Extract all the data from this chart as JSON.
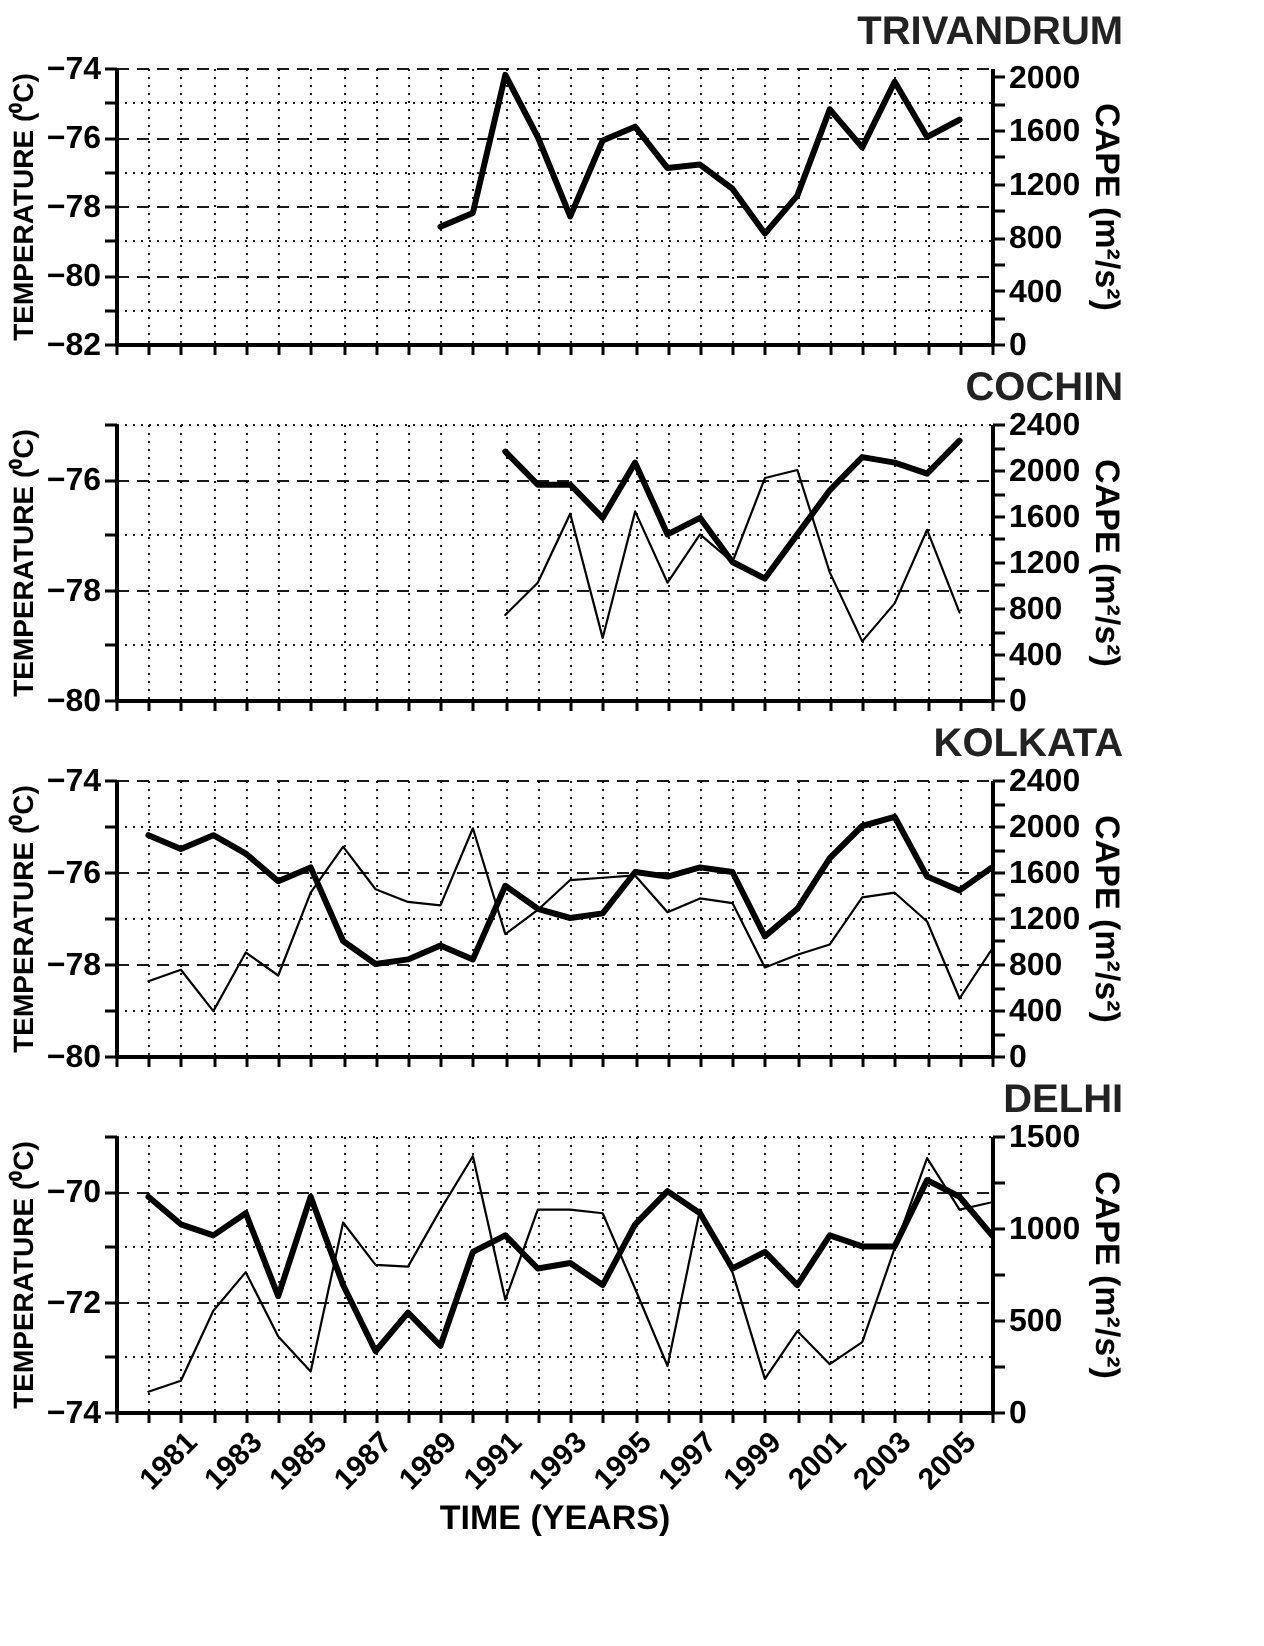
{
  "chart_data": [
    {
      "type": "line",
      "title": "TRIVANDRUM",
      "ylabel": "TEMPERATURE (⁰C)",
      "y2label": "CAPE (m²/s²)",
      "xlim": [
        1979,
        2006
      ],
      "xticks": [
        {
          "value": 1979,
          "label": null
        },
        {
          "value": 1980,
          "label": null
        },
        {
          "value": 1981,
          "label": null
        },
        {
          "value": 1982,
          "label": null
        },
        {
          "value": 1983,
          "label": null
        },
        {
          "value": 1984,
          "label": null
        },
        {
          "value": 1985,
          "label": null
        },
        {
          "value": 1986,
          "label": null
        },
        {
          "value": 1987,
          "label": null
        },
        {
          "value": 1988,
          "label": null
        },
        {
          "value": 1989,
          "label": null
        },
        {
          "value": 1990,
          "label": null
        },
        {
          "value": 1991,
          "label": null
        },
        {
          "value": 1992,
          "label": null
        },
        {
          "value": 1993,
          "label": null
        },
        {
          "value": 1994,
          "label": null
        },
        {
          "value": 1995,
          "label": null
        },
        {
          "value": 1996,
          "label": null
        },
        {
          "value": 1997,
          "label": null
        },
        {
          "value": 1998,
          "label": null
        },
        {
          "value": 1999,
          "label": null
        },
        {
          "value": 2000,
          "label": null
        },
        {
          "value": 2001,
          "label": null
        },
        {
          "value": 2002,
          "label": null
        },
        {
          "value": 2003,
          "label": null
        },
        {
          "value": 2004,
          "label": null
        },
        {
          "value": 2005,
          "label": null
        },
        {
          "value": 2006,
          "label": null
        }
      ],
      "ylim": [
        -82,
        -74
      ],
      "yticks": [
        -82,
        {
          "value": -81,
          "label": null
        },
        -80,
        {
          "value": -79,
          "label": null
        },
        -78,
        {
          "value": -77,
          "label": null
        },
        -76,
        {
          "value": -75,
          "label": null
        },
        -74
      ],
      "y2lim": [
        0,
        2065
      ],
      "y2ticks": [
        0,
        {
          "value": 200,
          "label": null
        },
        400,
        {
          "value": 600,
          "label": null
        },
        800,
        {
          "value": 1000,
          "label": null
        },
        1200,
        {
          "value": 1400,
          "label": null
        },
        1600,
        {
          "value": 1800,
          "label": null
        },
        2000
      ],
      "grid": true,
      "tick_labels": "y",
      "series": [
        {
          "color": "#000000",
          "x": [
            1989,
            1990,
            1991,
            1992,
            1993,
            1994,
            1995,
            1996,
            1997,
            1998,
            1999,
            2000,
            2001,
            2002,
            2003,
            2004,
            2005
          ],
          "values": [
            -78.6,
            -78.2,
            -74.2,
            -76.0,
            -78.3,
            -76.1,
            -75.7,
            -76.9,
            -76.8,
            -77.5,
            -78.8,
            -77.7,
            -75.2,
            -76.3,
            -74.4,
            -76.0,
            -75.5
          ]
        }
      ]
    },
    {
      "type": "line",
      "title": "COCHIN",
      "ylabel": "TEMPERATURE (⁰C)",
      "y2label": "CAPE (m²/s²)",
      "xlim": [
        1979,
        2006
      ],
      "xticks": [
        {
          "value": 1979,
          "label": null
        },
        {
          "value": 1980,
          "label": null
        },
        {
          "value": 1981,
          "label": null
        },
        {
          "value": 1982,
          "label": null
        },
        {
          "value": 1983,
          "label": null
        },
        {
          "value": 1984,
          "label": null
        },
        {
          "value": 1985,
          "label": null
        },
        {
          "value": 1986,
          "label": null
        },
        {
          "value": 1987,
          "label": null
        },
        {
          "value": 1988,
          "label": null
        },
        {
          "value": 1989,
          "label": null
        },
        {
          "value": 1990,
          "label": null
        },
        {
          "value": 1991,
          "label": null
        },
        {
          "value": 1992,
          "label": null
        },
        {
          "value": 1993,
          "label": null
        },
        {
          "value": 1994,
          "label": null
        },
        {
          "value": 1995,
          "label": null
        },
        {
          "value": 1996,
          "label": null
        },
        {
          "value": 1997,
          "label": null
        },
        {
          "value": 1998,
          "label": null
        },
        {
          "value": 1999,
          "label": null
        },
        {
          "value": 2000,
          "label": null
        },
        {
          "value": 2001,
          "label": null
        },
        {
          "value": 2002,
          "label": null
        },
        {
          "value": 2003,
          "label": null
        },
        {
          "value": 2004,
          "label": null
        },
        {
          "value": 2005,
          "label": null
        },
        {
          "value": 2006,
          "label": null
        }
      ],
      "ylim": [
        -80,
        -75
      ],
      "yticks": [
        -80,
        {
          "value": -79,
          "label": null
        },
        -78,
        {
          "value": -77,
          "label": null
        },
        -76,
        {
          "value": -75,
          "label": null
        }
      ],
      "y2lim": [
        0,
        2400
      ],
      "y2ticks": [
        0,
        {
          "value": 200,
          "label": null
        },
        400,
        {
          "value": 600,
          "label": null
        },
        800,
        {
          "value": 1000,
          "label": null
        },
        1200,
        {
          "value": 1400,
          "label": null
        },
        1600,
        {
          "value": 1800,
          "label": null
        },
        2000,
        {
          "value": 2200,
          "label": null
        },
        2400
      ],
      "grid": true,
      "tick_labels": "y",
      "series": [
        {
          "color": "#000000",
          "x": [
            1991,
            1992,
            1993,
            1994,
            1995,
            1996,
            1997,
            1998,
            1999,
            2000,
            2001,
            2002,
            2003,
            2004,
            2005
          ],
          "values": [
            -75.5,
            -76.1,
            -76.1,
            -76.7,
            -75.7,
            -77.0,
            -76.7,
            -77.5,
            -77.8,
            -77.0,
            -76.2,
            -75.6,
            -75.7,
            -75.9,
            -75.3
          ]
        },
        {
          "color": "#000000",
          "axis": "y2",
          "x": [
            1991,
            1992,
            1993,
            1994,
            1995,
            1996,
            1997,
            1998,
            1999,
            2000,
            2001,
            2002,
            2003,
            2004,
            2005
          ],
          "values": [
            740,
            1020,
            1620,
            540,
            1640,
            1020,
            1440,
            1200,
            1930,
            2000,
            1110,
            510,
            840,
            1480,
            760
          ]
        }
      ]
    },
    {
      "type": "line",
      "title": "KOLKATA",
      "ylabel": "TEMPERATURE (⁰C)",
      "y2label": "CAPE (m²/s²)",
      "xlim": [
        1979,
        2006
      ],
      "xticks": [
        {
          "value": 1979,
          "label": null
        },
        {
          "value": 1980,
          "label": null
        },
        {
          "value": 1981,
          "label": null
        },
        {
          "value": 1982,
          "label": null
        },
        {
          "value": 1983,
          "label": null
        },
        {
          "value": 1984,
          "label": null
        },
        {
          "value": 1985,
          "label": null
        },
        {
          "value": 1986,
          "label": null
        },
        {
          "value": 1987,
          "label": null
        },
        {
          "value": 1988,
          "label": null
        },
        {
          "value": 1989,
          "label": null
        },
        {
          "value": 1990,
          "label": null
        },
        {
          "value": 1991,
          "label": null
        },
        {
          "value": 1992,
          "label": null
        },
        {
          "value": 1993,
          "label": null
        },
        {
          "value": 1994,
          "label": null
        },
        {
          "value": 1995,
          "label": null
        },
        {
          "value": 1996,
          "label": null
        },
        {
          "value": 1997,
          "label": null
        },
        {
          "value": 1998,
          "label": null
        },
        {
          "value": 1999,
          "label": null
        },
        {
          "value": 2000,
          "label": null
        },
        {
          "value": 2001,
          "label": null
        },
        {
          "value": 2002,
          "label": null
        },
        {
          "value": 2003,
          "label": null
        },
        {
          "value": 2004,
          "label": null
        },
        {
          "value": 2005,
          "label": null
        },
        {
          "value": 2006,
          "label": null
        }
      ],
      "ylim": [
        -80,
        -74
      ],
      "yticks": [
        -80,
        {
          "value": -79,
          "label": null
        },
        -78,
        {
          "value": -77,
          "label": null
        },
        -76,
        {
          "value": -75,
          "label": null
        },
        -74
      ],
      "y2lim": [
        0,
        2400
      ],
      "y2ticks": [
        0,
        {
          "value": 200,
          "label": null
        },
        400,
        {
          "value": 600,
          "label": null
        },
        800,
        {
          "value": 1000,
          "label": null
        },
        1200,
        {
          "value": 1400,
          "label": null
        },
        1600,
        {
          "value": 1800,
          "label": null
        },
        2000,
        {
          "value": 2200,
          "label": null
        },
        2400
      ],
      "grid": true,
      "tick_labels": "y",
      "series": [
        {
          "color": "#000000",
          "x": [
            1980,
            1981,
            1982,
            1983,
            1984,
            1985,
            1986,
            1987,
            1988,
            1989,
            1990,
            1991,
            1992,
            1993,
            1994,
            1995,
            1996,
            1997,
            1998,
            1999,
            2000,
            2001,
            2002,
            2003,
            2004,
            2005,
            2006
          ],
          "values": [
            -75.2,
            -75.5,
            -75.2,
            -75.6,
            -76.2,
            -75.9,
            -77.5,
            -78.0,
            -77.9,
            -77.6,
            -77.9,
            -76.3,
            -76.8,
            -77.0,
            -76.9,
            -76.0,
            -76.1,
            -75.9,
            -76.0,
            -77.4,
            -76.8,
            -75.7,
            -75.0,
            -74.8,
            -76.1,
            -76.4,
            -75.9
          ]
        },
        {
          "color": "#000000",
          "axis": "y2",
          "x": [
            1980,
            1981,
            1982,
            1983,
            1984,
            1985,
            1986,
            1987,
            1988,
            1989,
            1990,
            1991,
            1992,
            1993,
            1994,
            1995,
            1996,
            1997,
            1998,
            1999,
            2000,
            2001,
            2002,
            2003,
            2004,
            2005,
            2006
          ],
          "values": [
            650,
            750,
            390,
            900,
            700,
            1420,
            1820,
            1450,
            1340,
            1310,
            1980,
            1060,
            1270,
            1530,
            1550,
            1570,
            1250,
            1370,
            1330,
            770,
            880,
            970,
            1380,
            1420,
            1170,
            500,
            930
          ]
        }
      ]
    },
    {
      "type": "line",
      "title": "DELHI",
      "xlabel": "TIME (YEARS)",
      "ylabel": "TEMPERATURE (⁰C)",
      "y2label": "CAPE (m²/s²)",
      "xlim": [
        1979,
        2006
      ],
      "xticks": [
        {
          "value": 1979,
          "label": null
        },
        {
          "value": 1980,
          "label": null
        },
        1981,
        {
          "value": 1982,
          "label": null
        },
        1983,
        {
          "value": 1984,
          "label": null
        },
        1985,
        {
          "value": 1986,
          "label": null
        },
        1987,
        {
          "value": 1988,
          "label": null
        },
        1989,
        {
          "value": 1990,
          "label": null
        },
        1991,
        {
          "value": 1992,
          "label": null
        },
        1993,
        {
          "value": 1994,
          "label": null
        },
        1995,
        {
          "value": 1996,
          "label": null
        },
        1997,
        {
          "value": 1998,
          "label": null
        },
        1999,
        {
          "value": 2000,
          "label": null
        },
        2001,
        {
          "value": 2002,
          "label": null
        },
        2003,
        {
          "value": 2004,
          "label": null
        },
        2005,
        {
          "value": 2006,
          "label": null
        }
      ],
      "ylim": [
        -74,
        -69
      ],
      "yticks": [
        -74,
        {
          "value": -73,
          "label": null
        },
        -72,
        {
          "value": -71,
          "label": null
        },
        -70,
        {
          "value": -69,
          "label": null
        }
      ],
      "y2lim": [
        0,
        1500
      ],
      "y2ticks": [
        0,
        {
          "value": 250,
          "label": null
        },
        500,
        {
          "value": 750,
          "label": null
        },
        1000,
        {
          "value": 1250,
          "label": null
        },
        1500
      ],
      "grid": true,
      "series": [
        {
          "color": "#000000",
          "x": [
            1980,
            1981,
            1982,
            1983,
            1984,
            1985,
            1986,
            1987,
            1988,
            1989,
            1990,
            1991,
            1992,
            1993,
            1994,
            1995,
            1996,
            1997,
            1998,
            1999,
            2000,
            2001,
            2002,
            2003,
            2004,
            2005,
            2006
          ],
          "values": [
            -70.1,
            -70.6,
            -70.8,
            -70.4,
            -71.9,
            -70.1,
            -71.7,
            -72.9,
            -72.2,
            -72.8,
            -71.1,
            -70.8,
            -71.4,
            -71.3,
            -71.7,
            -70.6,
            -70.0,
            -70.4,
            -71.4,
            -71.1,
            -71.7,
            -70.8,
            -71.0,
            -71.0,
            -69.8,
            -70.1,
            -70.8
          ]
        },
        {
          "color": "#000000",
          "axis": "y2",
          "x": [
            1980,
            1981,
            1982,
            1983,
            1984,
            1985,
            1986,
            1987,
            1988,
            1989,
            1990,
            1991,
            1992,
            1993,
            1994,
            1995,
            1996,
            1997,
            1998,
            1999,
            2000,
            2001,
            2002,
            2003,
            2004,
            2005,
            2006
          ],
          "values": [
            110,
            170,
            550,
            760,
            410,
            220,
            1030,
            800,
            790,
            1100,
            1390,
            610,
            1100,
            1100,
            1080,
            670,
            250,
            1100,
            760,
            180,
            440,
            260,
            380,
            890,
            1380,
            1100,
            1140
          ]
        }
      ]
    }
  ]
}
